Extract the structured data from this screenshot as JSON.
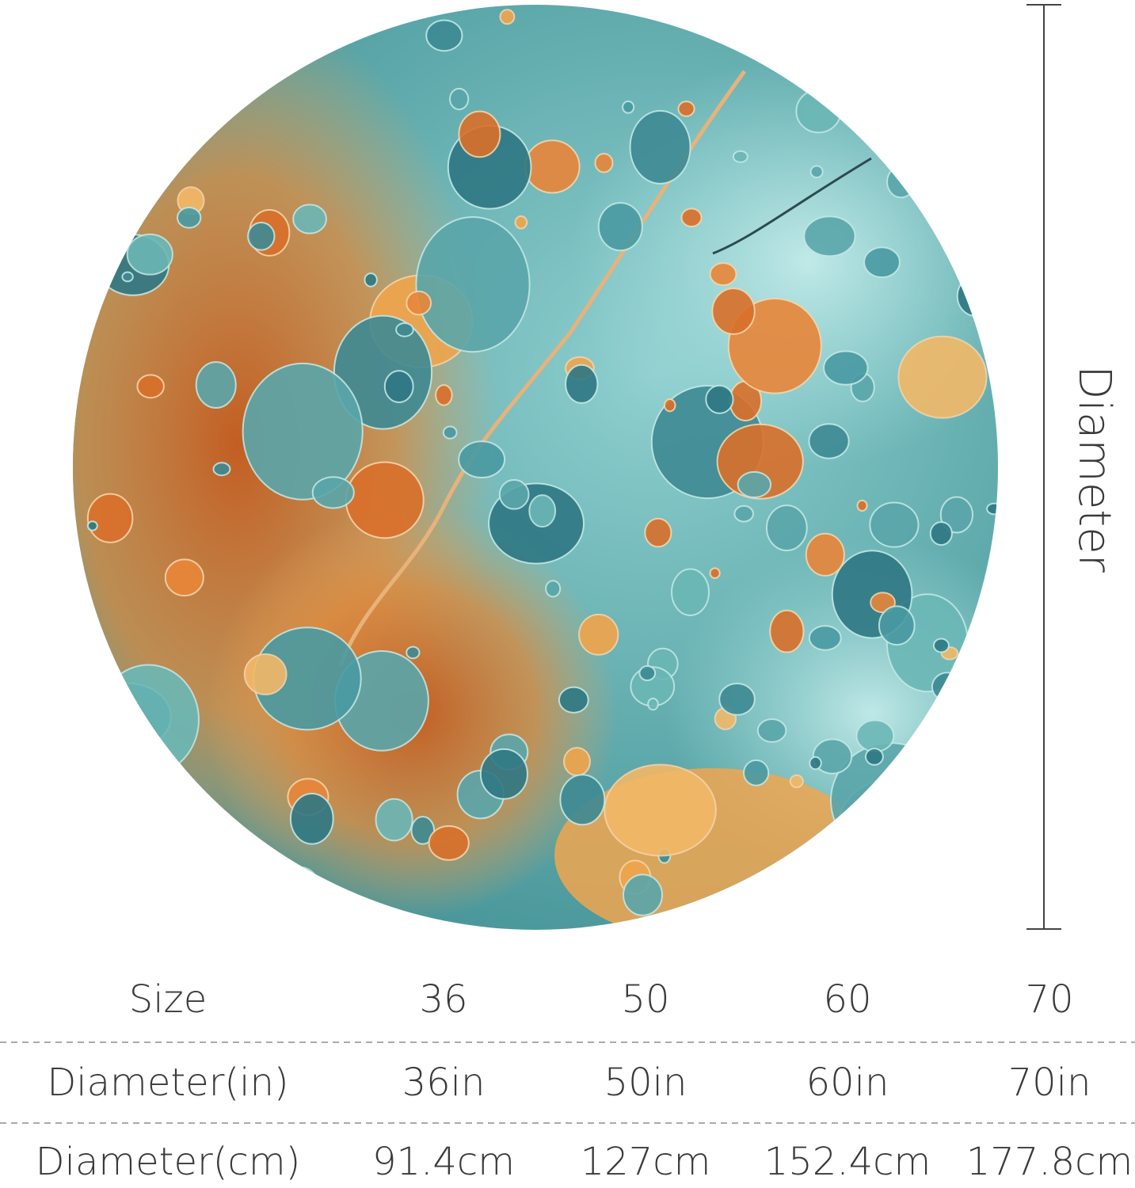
{
  "dimension_label": "Diameter",
  "table": {
    "rows": [
      [
        "Size",
        "36",
        "50",
        "60",
        "70"
      ],
      [
        "Diameter(in)",
        "36in",
        "50in",
        "60in",
        "70in"
      ],
      [
        "Diameter(cm)",
        "91.4cm",
        "127cm",
        "152.4cm",
        "177.8cm"
      ]
    ]
  }
}
